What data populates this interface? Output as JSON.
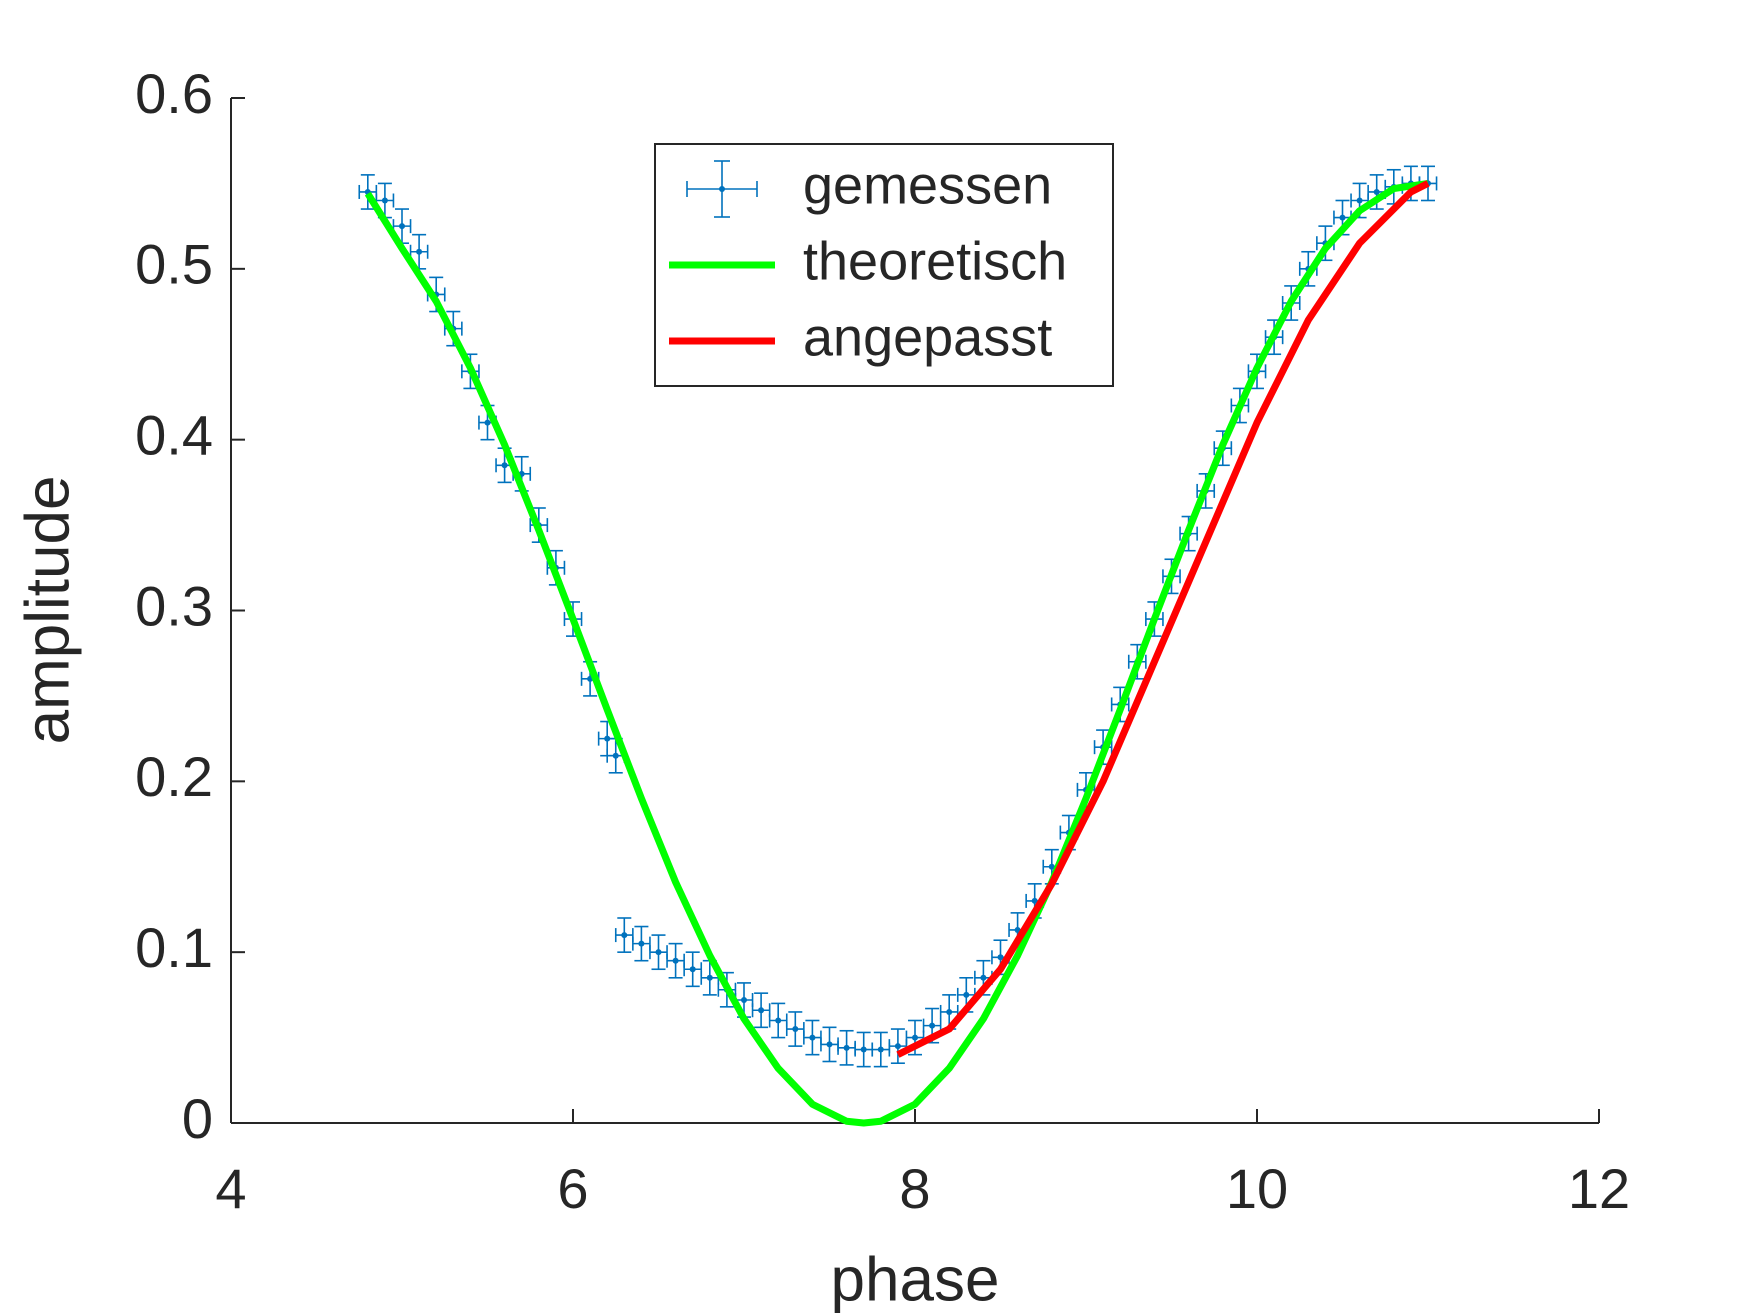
{
  "chart_data": {
    "type": "line",
    "xlabel": "phase",
    "ylabel": "amplitude",
    "xlim": [
      4,
      12
    ],
    "xticks": [
      4,
      6,
      8,
      10,
      12
    ],
    "ylim": [
      0,
      0.6
    ],
    "yticks": [
      0,
      0.1,
      0.2,
      0.3,
      0.4,
      0.5,
      0.6
    ],
    "grid": false,
    "legend": "upper center",
    "series": [
      {
        "name": "gemessen",
        "color": "#0072BD",
        "errorbars": true,
        "xerr": 0.05,
        "yerr": 0.01,
        "x": [
          4.8,
          4.9,
          5.0,
          5.1,
          5.2,
          5.3,
          5.4,
          5.5,
          5.6,
          5.7,
          5.8,
          5.9,
          6.0,
          6.1,
          6.2,
          6.25,
          6.3,
          6.4,
          6.5,
          6.6,
          6.7,
          6.8,
          6.9,
          7.0,
          7.1,
          7.2,
          7.3,
          7.4,
          7.5,
          7.6,
          7.7,
          7.8,
          7.9,
          8.0,
          8.1,
          8.2,
          8.3,
          8.4,
          8.5,
          8.6,
          8.7,
          8.8,
          8.9,
          9.0,
          9.1,
          9.2,
          9.3,
          9.4,
          9.5,
          9.6,
          9.7,
          9.8,
          9.9,
          10.0,
          10.1,
          10.2,
          10.3,
          10.4,
          10.5,
          10.6,
          10.7,
          10.8,
          10.9,
          11.0
        ],
        "values": [
          0.545,
          0.54,
          0.525,
          0.51,
          0.485,
          0.465,
          0.44,
          0.41,
          0.385,
          0.38,
          0.35,
          0.325,
          0.295,
          0.26,
          0.225,
          0.215,
          0.11,
          0.105,
          0.1,
          0.095,
          0.09,
          0.085,
          0.078,
          0.072,
          0.066,
          0.06,
          0.055,
          0.05,
          0.046,
          0.044,
          0.043,
          0.043,
          0.045,
          0.05,
          0.057,
          0.065,
          0.075,
          0.085,
          0.097,
          0.113,
          0.13,
          0.15,
          0.17,
          0.195,
          0.22,
          0.245,
          0.27,
          0.295,
          0.32,
          0.345,
          0.37,
          0.395,
          0.42,
          0.44,
          0.46,
          0.48,
          0.5,
          0.515,
          0.53,
          0.54,
          0.545,
          0.548,
          0.55,
          0.55
        ]
      },
      {
        "name": "theoretisch",
        "color": "#00FF00",
        "x": [
          4.8,
          5.0,
          5.2,
          5.4,
          5.6,
          5.8,
          6.0,
          6.2,
          6.4,
          6.6,
          6.8,
          7.0,
          7.2,
          7.4,
          7.6,
          7.7,
          7.8,
          8.0,
          8.2,
          8.4,
          8.6,
          8.8,
          9.0,
          9.2,
          9.4,
          9.6,
          9.8,
          10.0,
          10.2,
          10.4,
          10.6,
          10.8,
          11.0
        ],
        "values": [
          0.544,
          0.512,
          0.481,
          0.442,
          0.397,
          0.347,
          0.295,
          0.242,
          0.19,
          0.141,
          0.098,
          0.061,
          0.032,
          0.011,
          0.001,
          0,
          0.001,
          0.011,
          0.032,
          0.061,
          0.098,
          0.141,
          0.19,
          0.242,
          0.295,
          0.347,
          0.397,
          0.442,
          0.481,
          0.512,
          0.534,
          0.547,
          0.55
        ]
      },
      {
        "name": "angepasst",
        "color": "#FF0000",
        "x": [
          7.9,
          8.2,
          8.5,
          8.8,
          9.1,
          9.4,
          9.7,
          10.0,
          10.3,
          10.6,
          10.9,
          11.0
        ],
        "values": [
          0.04,
          0.055,
          0.09,
          0.14,
          0.2,
          0.27,
          0.34,
          0.41,
          0.47,
          0.515,
          0.545,
          0.55
        ]
      }
    ]
  }
}
